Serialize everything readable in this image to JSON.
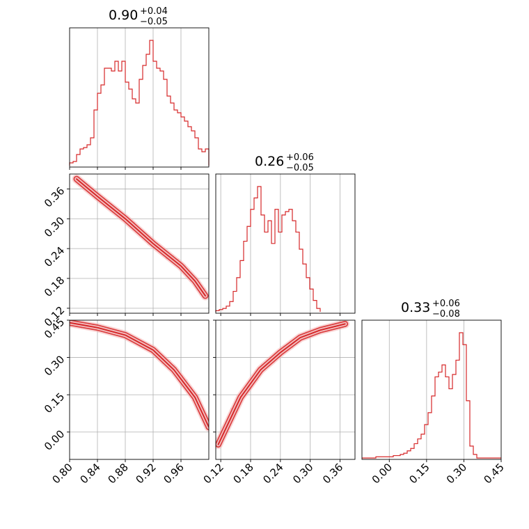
{
  "colors": {
    "series": "#d62728",
    "grid": "#b0b0b0",
    "axis": "#000000"
  },
  "chart_data": {
    "type": "corner",
    "description_free": true,
    "parameters": [
      {
        "range": [
          0.8,
          1.0
        ],
        "ticks": [
          0.8,
          0.84,
          0.88,
          0.92,
          0.96
        ],
        "tick_labels": [
          "0.80",
          "0.84",
          "0.88",
          "0.92",
          "0.96"
        ],
        "title": {
          "value": "0.90",
          "plus": "+0.04",
          "minus": "−0.05"
        }
      },
      {
        "range": [
          0.11,
          0.39
        ],
        "ticks": [
          0.12,
          0.18,
          0.24,
          0.3,
          0.36
        ],
        "tick_labels": [
          "0.12",
          "0.18",
          "0.24",
          "0.30",
          "0.36"
        ],
        "title": {
          "value": "0.26",
          "plus": "+0.06",
          "minus": "−0.05"
        }
      },
      {
        "range": [
          -0.11,
          0.45
        ],
        "ticks": [
          0.0,
          0.15,
          0.3,
          0.45
        ],
        "tick_labels": [
          "0.00",
          "0.15",
          "0.30",
          "0.45"
        ],
        "title": {
          "value": "0.33",
          "plus": "+0.06",
          "minus": "−0.08"
        }
      }
    ],
    "histograms": [
      {
        "param": 0,
        "bin_start": 0.8,
        "bin_width": 0.005,
        "counts": [
          2,
          3,
          8,
          12,
          13,
          15,
          20,
          40,
          52,
          58,
          70,
          70,
          68,
          75,
          68,
          75,
          60,
          55,
          48,
          45,
          62,
          72,
          80,
          90,
          75,
          70,
          68,
          62,
          50,
          45,
          40,
          38,
          35,
          32,
          28,
          25,
          20,
          12,
          10,
          12
        ]
      },
      {
        "param": 1,
        "bin_start": 0.11,
        "bin_width": 0.007,
        "counts": [
          1,
          2,
          3,
          5,
          9,
          18,
          30,
          45,
          62,
          75,
          90,
          100,
          110,
          85,
          70,
          80,
          60,
          90,
          70,
          85,
          88,
          90,
          80,
          70,
          55,
          42,
          30,
          20,
          10,
          3
        ]
      },
      {
        "param": 2,
        "bin_start": -0.11,
        "bin_width": 0.014,
        "counts": [
          0,
          0,
          0,
          0,
          1,
          1,
          1,
          1,
          1,
          2,
          2,
          3,
          4,
          6,
          8,
          12,
          16,
          20,
          28,
          38,
          52,
          68,
          72,
          78,
          68,
          58,
          70,
          82,
          105,
          95,
          48,
          10,
          3,
          0,
          0,
          0,
          0,
          0,
          0,
          0
        ]
      }
    ],
    "pairs": [
      {
        "x_param": 0,
        "y_param": 1,
        "ridge": [
          [
            0.81,
            0.38
          ],
          [
            0.84,
            0.345
          ],
          [
            0.88,
            0.3
          ],
          [
            0.92,
            0.25
          ],
          [
            0.96,
            0.205
          ],
          [
            0.98,
            0.175
          ],
          [
            0.995,
            0.145
          ]
        ]
      },
      {
        "x_param": 0,
        "y_param": 2,
        "ridge": [
          [
            0.8,
            0.44
          ],
          [
            0.84,
            0.42
          ],
          [
            0.88,
            0.39
          ],
          [
            0.92,
            0.33
          ],
          [
            0.95,
            0.25
          ],
          [
            0.98,
            0.14
          ],
          [
            1.0,
            0.02
          ]
        ]
      },
      {
        "x_param": 1,
        "y_param": 2,
        "ridge": [
          [
            0.115,
            -0.05
          ],
          [
            0.16,
            0.14
          ],
          [
            0.2,
            0.25
          ],
          [
            0.24,
            0.32
          ],
          [
            0.28,
            0.38
          ],
          [
            0.32,
            0.41
          ],
          [
            0.37,
            0.435
          ]
        ]
      }
    ]
  }
}
